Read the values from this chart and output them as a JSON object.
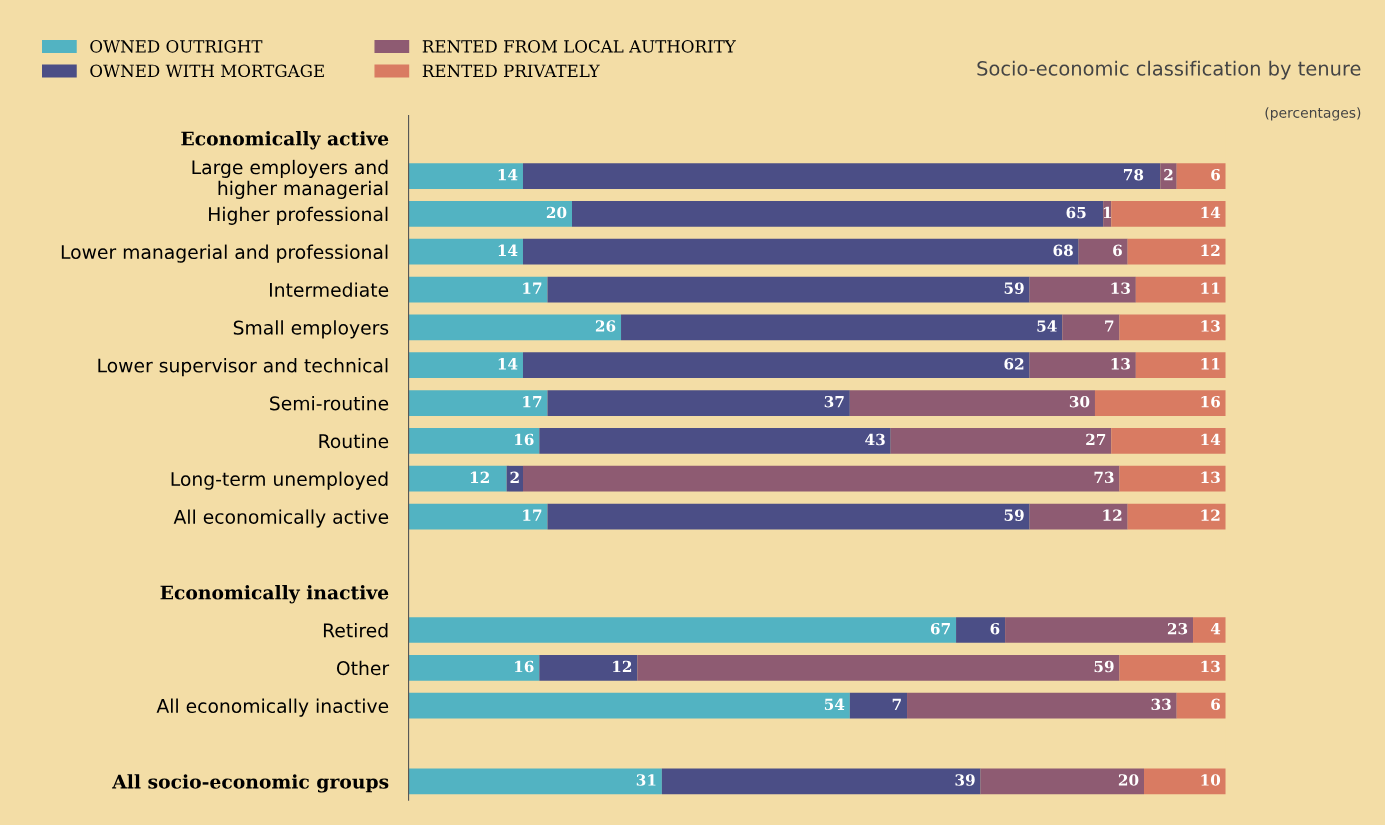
{
  "chart_data": {
    "type": "bar",
    "orientation": "horizontal",
    "stacked": true,
    "data_labels": true,
    "legend": "top left",
    "grid": false,
    "title": "Socio-economic classification by tenure",
    "subtitle": "(percentages)",
    "categories": [
      "Economically active",
      "Large employers and\nhigher managerial",
      "Higher professional",
      "Lower managerial and professional",
      "Intermediate",
      "Small employers",
      "Lower supervisor and technical",
      "Semi-routine",
      "Routine",
      "Long-term unemployed",
      "All economically active",
      null,
      "Economically inactive",
      "Retired",
      "Other",
      "All economically inactive",
      null,
      "All socio-economic groups"
    ],
    "series": [
      {
        "name": "OWNED OUTRIGHT",
        "color": "#52b3c2",
        "values": [
          null,
          14,
          20,
          14,
          17,
          26,
          14,
          17,
          16,
          12,
          17,
          null,
          null,
          67,
          16,
          54,
          null,
          31
        ]
      },
      {
        "name": "OWNED WITH MORTGAGE",
        "color": "#4b4e86",
        "values": [
          null,
          78,
          65,
          68,
          59,
          54,
          62,
          37,
          43,
          2,
          59,
          null,
          null,
          6,
          12,
          7,
          null,
          39
        ]
      },
      {
        "name": "RENTED FROM LOCAL AUTHORITY",
        "color": "#8e5b72",
        "values": [
          null,
          2,
          1,
          6,
          13,
          7,
          13,
          30,
          27,
          73,
          12,
          null,
          null,
          23,
          59,
          33,
          null,
          20
        ]
      },
      {
        "name": "RENTED PRIVATELY",
        "color": "#d97b62",
        "values": [
          null,
          6,
          14,
          12,
          11,
          13,
          11,
          16,
          14,
          13,
          12,
          null,
          null,
          4,
          13,
          6,
          null,
          10
        ]
      }
    ]
  }
}
